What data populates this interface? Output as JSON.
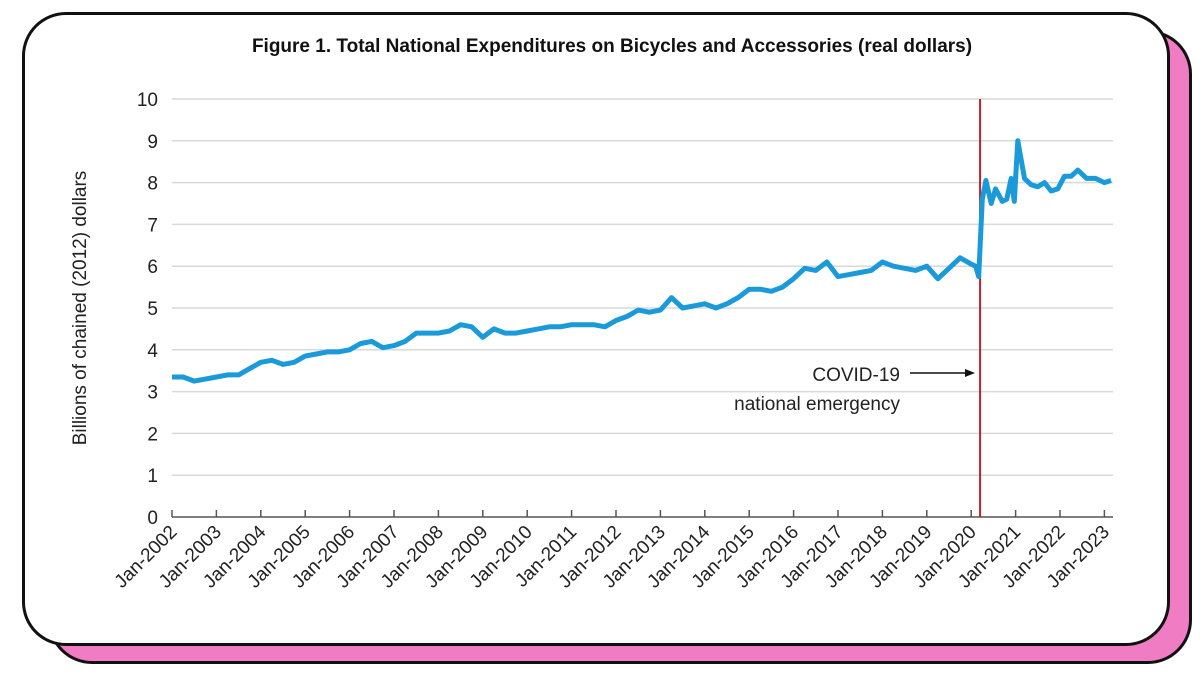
{
  "chart_data": {
    "type": "line",
    "title": "Figure 1. Total National Expenditures on Bicycles and Accessories (real dollars)",
    "xlabel": "",
    "ylabel": "Billions of chained  (2012) dollars",
    "ylim": [
      0,
      10
    ],
    "yticks": [
      "0",
      "1",
      "2",
      "3",
      "4",
      "5",
      "6",
      "7",
      "8",
      "9",
      "10"
    ],
    "xticks": [
      "Jan-2002",
      "Jan-2003",
      "Jan-2004",
      "Jan-2005",
      "Jan-2006",
      "Jan-2007",
      "Jan-2008",
      "Jan-2009",
      "Jan-2010",
      "Jan-2011",
      "Jan-2012",
      "Jan-2013",
      "Jan-2014",
      "Jan-2015",
      "Jan-2016",
      "Jan-2017",
      "Jan-2018",
      "Jan-2019",
      "Jan-2020",
      "Jan-2021",
      "Jan-2022",
      "Jan-2023"
    ],
    "grid": true,
    "series": [
      {
        "name": "Expenditures",
        "color": "#1a9ad9",
        "x": [
          2002,
          2002.25,
          2002.5,
          2002.75,
          2003,
          2003.25,
          2003.5,
          2003.75,
          2004,
          2004.25,
          2004.5,
          2004.75,
          2005,
          2005.25,
          2005.5,
          2005.75,
          2006,
          2006.25,
          2006.5,
          2006.75,
          2007,
          2007.25,
          2007.5,
          2007.75,
          2008,
          2008.25,
          2008.5,
          2008.75,
          2009,
          2009.25,
          2009.5,
          2009.75,
          2010,
          2010.25,
          2010.5,
          2010.75,
          2011,
          2011.25,
          2011.5,
          2011.75,
          2012,
          2012.25,
          2012.5,
          2012.75,
          2013,
          2013.25,
          2013.5,
          2013.75,
          2014,
          2014.25,
          2014.5,
          2014.75,
          2015,
          2015.25,
          2015.5,
          2015.75,
          2016,
          2016.25,
          2016.5,
          2016.75,
          2017,
          2017.25,
          2017.5,
          2017.75,
          2018,
          2018.25,
          2018.5,
          2018.75,
          2019,
          2019.25,
          2019.5,
          2019.75,
          2020,
          2020.1,
          2020.17,
          2020.25,
          2020.33,
          2020.45,
          2020.55,
          2020.7,
          2020.8,
          2020.9,
          2020.97,
          2021.05,
          2021.2,
          2021.35,
          2021.5,
          2021.65,
          2021.8,
          2021.95,
          2022.1,
          2022.25,
          2022.4,
          2022.6,
          2022.8,
          2023.0,
          2023.15
        ],
        "values": [
          3.35,
          3.35,
          3.25,
          3.3,
          3.35,
          3.4,
          3.4,
          3.55,
          3.7,
          3.75,
          3.65,
          3.7,
          3.85,
          3.9,
          3.95,
          3.95,
          4.0,
          4.15,
          4.2,
          4.05,
          4.1,
          4.2,
          4.4,
          4.4,
          4.4,
          4.45,
          4.6,
          4.55,
          4.3,
          4.5,
          4.4,
          4.4,
          4.45,
          4.5,
          4.55,
          4.55,
          4.6,
          4.6,
          4.6,
          4.55,
          4.7,
          4.8,
          4.95,
          4.9,
          4.95,
          5.25,
          5.0,
          5.05,
          5.1,
          5.0,
          5.1,
          5.25,
          5.45,
          5.45,
          5.4,
          5.5,
          5.7,
          5.95,
          5.9,
          6.1,
          5.75,
          5.8,
          5.85,
          5.9,
          6.1,
          6.0,
          5.95,
          5.9,
          6.0,
          5.7,
          5.95,
          6.2,
          6.05,
          6.0,
          5.75,
          7.6,
          8.05,
          7.5,
          7.85,
          7.55,
          7.6,
          8.1,
          7.55,
          9.0,
          8.1,
          7.95,
          7.9,
          8.0,
          7.8,
          7.85,
          8.15,
          8.15,
          8.3,
          8.1,
          8.1,
          8.0,
          8.05
        ]
      }
    ],
    "annotation": {
      "line1": "COVID-19",
      "line2": "national emergency",
      "event_x": 2020.2,
      "color": "#c0202a"
    }
  }
}
